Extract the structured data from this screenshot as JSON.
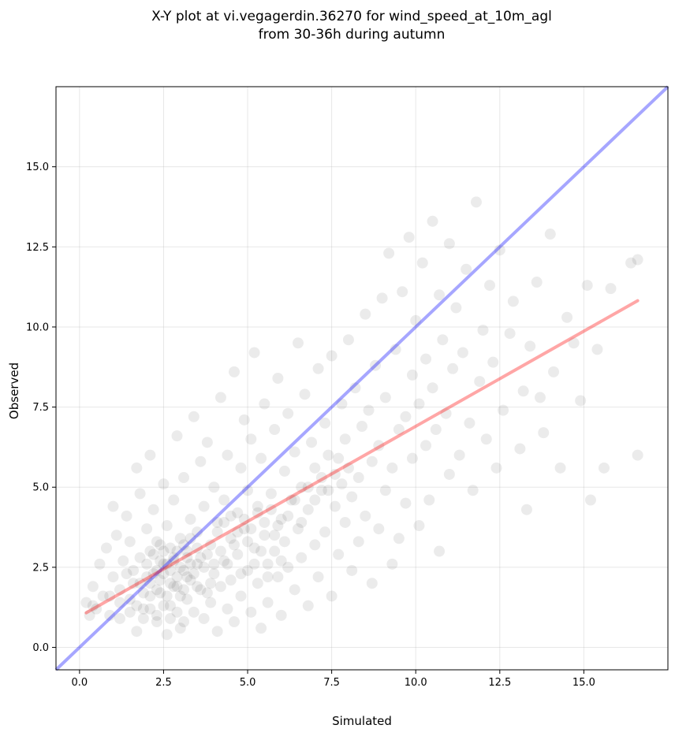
{
  "chart_data": {
    "type": "scatter",
    "title": [
      "X-Y plot at vi.vegagerdin.36270 for wind_speed_at_10m_agl",
      "from 30-36h during autumn"
    ],
    "xlabel": "Simulated",
    "ylabel": "Observed",
    "xlim": [
      -0.7,
      17.5
    ],
    "ylim": [
      -0.7,
      17.5
    ],
    "xticks": [
      0.0,
      2.5,
      5.0,
      7.5,
      10.0,
      12.5,
      15.0
    ],
    "yticks": [
      0.0,
      2.5,
      5.0,
      7.5,
      10.0,
      12.5,
      15.0
    ],
    "xtick_labels": [
      "0.0",
      "2.5",
      "5.0",
      "7.5",
      "10.0",
      "12.5",
      "15.0"
    ],
    "ytick_labels": [
      "0.0",
      "2.5",
      "5.0",
      "7.5",
      "10.0",
      "12.5",
      "15.0"
    ],
    "grid": true,
    "point_color": "#000000",
    "point_opacity": 0.08,
    "identity_line": {
      "from": [
        -0.7,
        -0.7
      ],
      "to": [
        17.5,
        17.5
      ],
      "color": "#0000ff"
    },
    "fit_line": {
      "from": [
        0.2,
        1.08
      ],
      "to": [
        16.6,
        10.82
      ],
      "color": "#ff0000"
    },
    "points": [
      [
        0.2,
        1.4
      ],
      [
        0.3,
        1.0
      ],
      [
        0.4,
        1.9
      ],
      [
        0.5,
        1.2
      ],
      [
        0.6,
        2.6
      ],
      [
        0.7,
        1.6
      ],
      [
        0.8,
        3.1
      ],
      [
        0.9,
        1.0
      ],
      [
        1.0,
        2.2
      ],
      [
        1.0,
        4.4
      ],
      [
        1.1,
        3.5
      ],
      [
        1.2,
        1.8
      ],
      [
        1.2,
        0.9
      ],
      [
        1.3,
        2.7
      ],
      [
        1.4,
        4.1
      ],
      [
        1.5,
        1.5
      ],
      [
        1.5,
        3.3
      ],
      [
        1.6,
        2.0
      ],
      [
        1.7,
        5.6
      ],
      [
        1.7,
        0.5
      ],
      [
        1.8,
        2.8
      ],
      [
        1.8,
        4.8
      ],
      [
        1.9,
        1.2
      ],
      [
        2.0,
        3.7
      ],
      [
        2.0,
        2.2
      ],
      [
        2.1,
        6.0
      ],
      [
        2.1,
        1.6
      ],
      [
        2.2,
        2.9
      ],
      [
        2.2,
        4.3
      ],
      [
        2.3,
        0.8
      ],
      [
        2.3,
        2.4
      ],
      [
        2.4,
        3.2
      ],
      [
        2.4,
        1.7
      ],
      [
        2.5,
        5.1
      ],
      [
        2.5,
        2.6
      ],
      [
        2.6,
        0.4
      ],
      [
        2.6,
        3.8
      ],
      [
        2.7,
        2.0
      ],
      [
        2.7,
        1.3
      ],
      [
        2.8,
        4.6
      ],
      [
        2.8,
        2.8
      ],
      [
        2.9,
        6.6
      ],
      [
        2.9,
        1.9
      ],
      [
        3.0,
        3.4
      ],
      [
        3.0,
        0.6
      ],
      [
        3.1,
        2.4
      ],
      [
        3.1,
        5.3
      ],
      [
        3.2,
        1.5
      ],
      [
        3.2,
        3.0
      ],
      [
        3.3,
        4.0
      ],
      [
        3.3,
        2.1
      ],
      [
        3.4,
        7.2
      ],
      [
        3.4,
        1.1
      ],
      [
        3.5,
        3.6
      ],
      [
        3.5,
        2.6
      ],
      [
        3.6,
        5.8
      ],
      [
        3.6,
        1.8
      ],
      [
        3.7,
        0.9
      ],
      [
        3.7,
        4.4
      ],
      [
        3.8,
        2.9
      ],
      [
        3.8,
        6.4
      ],
      [
        3.9,
        1.4
      ],
      [
        3.9,
        3.2
      ],
      [
        4.0,
        2.3
      ],
      [
        4.0,
        5.0
      ],
      [
        4.1,
        0.5
      ],
      [
        4.1,
        3.9
      ],
      [
        4.2,
        1.9
      ],
      [
        4.2,
        7.8
      ],
      [
        4.3,
        2.7
      ],
      [
        4.3,
        4.6
      ],
      [
        4.4,
        1.2
      ],
      [
        4.4,
        6.0
      ],
      [
        4.5,
        3.4
      ],
      [
        4.5,
        2.1
      ],
      [
        4.6,
        8.6
      ],
      [
        4.6,
        0.8
      ],
      [
        4.7,
        4.2
      ],
      [
        4.7,
        2.9
      ],
      [
        4.8,
        5.6
      ],
      [
        4.8,
        1.6
      ],
      [
        4.9,
        3.7
      ],
      [
        4.9,
        7.1
      ],
      [
        5.0,
        2.4
      ],
      [
        5.0,
        4.9
      ],
      [
        5.1,
        1.1
      ],
      [
        5.1,
        6.5
      ],
      [
        5.2,
        3.1
      ],
      [
        5.2,
        9.2
      ],
      [
        5.3,
        2.0
      ],
      [
        5.3,
        4.4
      ],
      [
        5.4,
        5.9
      ],
      [
        5.4,
        0.6
      ],
      [
        5.5,
        3.5
      ],
      [
        5.5,
        7.6
      ],
      [
        5.6,
        2.6
      ],
      [
        5.6,
        1.4
      ],
      [
        5.7,
        4.8
      ],
      [
        5.8,
        6.8
      ],
      [
        5.8,
        3.0
      ],
      [
        5.9,
        2.2
      ],
      [
        5.9,
        8.4
      ],
      [
        6.0,
        4.0
      ],
      [
        6.0,
        1.0
      ],
      [
        6.1,
        5.5
      ],
      [
        6.1,
        3.3
      ],
      [
        6.2,
        7.3
      ],
      [
        6.2,
        2.5
      ],
      [
        6.3,
        4.6
      ],
      [
        6.4,
        6.1
      ],
      [
        6.4,
        1.8
      ],
      [
        6.5,
        3.7
      ],
      [
        6.5,
        9.5
      ],
      [
        6.6,
        5.0
      ],
      [
        6.6,
        2.8
      ],
      [
        6.7,
        7.9
      ],
      [
        6.8,
        4.3
      ],
      [
        6.8,
        1.3
      ],
      [
        6.9,
        6.4
      ],
      [
        7.0,
        3.2
      ],
      [
        7.0,
        5.6
      ],
      [
        7.1,
        8.7
      ],
      [
        7.1,
        2.2
      ],
      [
        7.2,
        4.9
      ],
      [
        7.3,
        7.0
      ],
      [
        7.3,
        3.6
      ],
      [
        7.4,
        6.0
      ],
      [
        7.5,
        1.6
      ],
      [
        7.5,
        9.1
      ],
      [
        7.6,
        4.4
      ],
      [
        7.7,
        5.9
      ],
      [
        7.7,
        2.9
      ],
      [
        7.8,
        7.6
      ],
      [
        7.9,
        3.9
      ],
      [
        7.9,
        6.5
      ],
      [
        8.0,
        9.6
      ],
      [
        8.1,
        4.7
      ],
      [
        8.1,
        2.4
      ],
      [
        8.2,
        8.1
      ],
      [
        8.3,
        5.3
      ],
      [
        8.3,
        3.3
      ],
      [
        8.4,
        6.9
      ],
      [
        8.5,
        10.4
      ],
      [
        8.5,
        4.1
      ],
      [
        8.6,
        7.4
      ],
      [
        8.7,
        2.0
      ],
      [
        8.7,
        5.8
      ],
      [
        8.8,
        8.8
      ],
      [
        8.9,
        3.7
      ],
      [
        8.9,
        6.3
      ],
      [
        9.0,
        10.9
      ],
      [
        9.1,
        4.9
      ],
      [
        9.1,
        7.8
      ],
      [
        9.2,
        12.3
      ],
      [
        9.3,
        2.6
      ],
      [
        9.3,
        5.6
      ],
      [
        9.4,
        9.3
      ],
      [
        9.5,
        6.8
      ],
      [
        9.5,
        3.4
      ],
      [
        9.6,
        11.1
      ],
      [
        9.7,
        7.2
      ],
      [
        9.7,
        4.5
      ],
      [
        9.8,
        12.8
      ],
      [
        9.9,
        8.5
      ],
      [
        9.9,
        5.9
      ],
      [
        10.0,
        10.2
      ],
      [
        10.1,
        3.8
      ],
      [
        10.1,
        7.6
      ],
      [
        10.2,
        12.0
      ],
      [
        10.3,
        6.3
      ],
      [
        10.3,
        9.0
      ],
      [
        10.4,
        4.6
      ],
      [
        10.5,
        13.3
      ],
      [
        10.5,
        8.1
      ],
      [
        10.6,
        6.8
      ],
      [
        10.7,
        11.0
      ],
      [
        10.7,
        3.0
      ],
      [
        10.8,
        9.6
      ],
      [
        10.9,
        7.3
      ],
      [
        11.0,
        12.6
      ],
      [
        11.0,
        5.4
      ],
      [
        11.1,
        8.7
      ],
      [
        11.2,
        10.6
      ],
      [
        11.3,
        6.0
      ],
      [
        11.4,
        9.2
      ],
      [
        11.5,
        11.8
      ],
      [
        11.6,
        7.0
      ],
      [
        11.7,
        4.9
      ],
      [
        11.8,
        13.9
      ],
      [
        11.9,
        8.3
      ],
      [
        12.0,
        9.9
      ],
      [
        12.1,
        6.5
      ],
      [
        12.2,
        11.3
      ],
      [
        12.3,
        8.9
      ],
      [
        12.4,
        5.6
      ],
      [
        12.5,
        12.4
      ],
      [
        12.6,
        7.4
      ],
      [
        12.8,
        9.8
      ],
      [
        12.9,
        10.8
      ],
      [
        13.1,
        6.2
      ],
      [
        13.2,
        8.0
      ],
      [
        13.3,
        4.3
      ],
      [
        13.4,
        9.4
      ],
      [
        13.6,
        11.4
      ],
      [
        13.7,
        7.8
      ],
      [
        13.8,
        6.7
      ],
      [
        14.0,
        12.9
      ],
      [
        14.1,
        8.6
      ],
      [
        14.3,
        5.6
      ],
      [
        14.5,
        10.3
      ],
      [
        14.7,
        9.5
      ],
      [
        14.9,
        7.7
      ],
      [
        15.1,
        11.3
      ],
      [
        15.2,
        4.6
      ],
      [
        15.4,
        9.3
      ],
      [
        15.6,
        5.6
      ],
      [
        15.8,
        11.2
      ],
      [
        16.4,
        12.0
      ],
      [
        16.6,
        12.1
      ],
      [
        16.6,
        6.0
      ],
      [
        0.4,
        1.3
      ],
      [
        0.9,
        1.6
      ],
      [
        1.4,
        2.3
      ],
      [
        1.9,
        1.7
      ],
      [
        2.2,
        2.3
      ],
      [
        2.4,
        2.1
      ],
      [
        2.6,
        2.6
      ],
      [
        2.8,
        1.9
      ],
      [
        3.0,
        2.5
      ],
      [
        3.2,
        2.2
      ],
      [
        2.0,
        2.6
      ],
      [
        2.3,
        1.8
      ],
      [
        2.5,
        2.3
      ],
      [
        2.7,
        2.4
      ],
      [
        2.9,
        2.2
      ],
      [
        3.1,
        1.8
      ],
      [
        3.3,
        2.6
      ],
      [
        3.5,
        1.9
      ],
      [
        3.7,
        2.5
      ],
      [
        3.9,
        2.0
      ],
      [
        2.1,
        2.0
      ],
      [
        2.4,
        2.7
      ],
      [
        2.6,
        1.6
      ],
      [
        2.8,
        2.7
      ],
      [
        3.0,
        1.6
      ],
      [
        3.2,
        2.8
      ],
      [
        3.4,
        2.3
      ],
      [
        3.6,
        2.8
      ],
      [
        3.8,
        1.7
      ],
      [
        4.0,
        2.6
      ],
      [
        1.6,
        2.4
      ],
      [
        1.8,
        2.0
      ],
      [
        2.1,
        3.0
      ],
      [
        2.3,
        3.3
      ],
      [
        2.5,
        3.0
      ],
      [
        2.7,
        3.1
      ],
      [
        2.9,
        3.0
      ],
      [
        3.1,
        3.2
      ],
      [
        3.3,
        3.4
      ],
      [
        3.5,
        3.1
      ],
      [
        1.2,
        1.4
      ],
      [
        1.5,
        1.1
      ],
      [
        1.7,
        1.3
      ],
      [
        1.9,
        0.9
      ],
      [
        2.1,
        1.2
      ],
      [
        2.3,
        1.0
      ],
      [
        2.5,
        1.3
      ],
      [
        2.7,
        0.9
      ],
      [
        2.9,
        1.1
      ],
      [
        3.1,
        0.8
      ],
      [
        4.2,
        3.0
      ],
      [
        4.4,
        2.6
      ],
      [
        4.6,
        3.2
      ],
      [
        4.8,
        2.3
      ],
      [
        5.0,
        3.3
      ],
      [
        5.2,
        2.6
      ],
      [
        5.4,
        3.0
      ],
      [
        5.6,
        2.2
      ],
      [
        5.8,
        3.5
      ],
      [
        6.0,
        2.7
      ],
      [
        4.1,
        3.6
      ],
      [
        4.3,
        3.9
      ],
      [
        4.5,
        4.1
      ],
      [
        4.7,
        3.6
      ],
      [
        4.9,
        4.0
      ],
      [
        5.1,
        3.7
      ],
      [
        5.3,
        4.2
      ],
      [
        5.5,
        3.9
      ],
      [
        5.7,
        4.3
      ],
      [
        5.9,
        3.8
      ],
      [
        6.2,
        4.1
      ],
      [
        6.4,
        4.6
      ],
      [
        6.6,
        3.9
      ],
      [
        6.8,
        5.0
      ],
      [
        7.0,
        4.6
      ],
      [
        7.2,
        5.3
      ],
      [
        7.4,
        4.9
      ],
      [
        7.6,
        5.4
      ],
      [
        7.8,
        5.1
      ],
      [
        8.0,
        5.6
      ]
    ]
  }
}
